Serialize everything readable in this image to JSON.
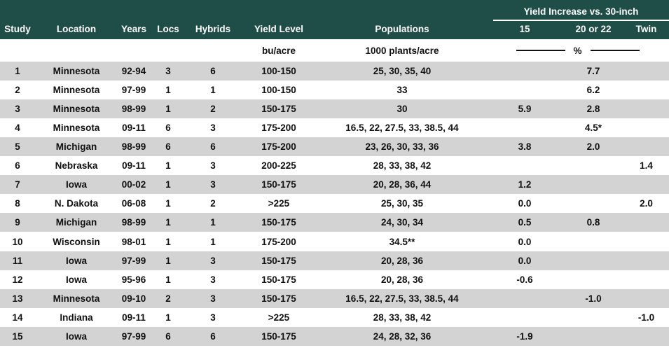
{
  "colors": {
    "header_bg": "#1F4E48",
    "stripe": "#D3D3D3",
    "row_white": "#FFFFFF",
    "header_text": "#FFFFFF",
    "body_text": "#111111"
  },
  "chart_data": {
    "type": "table",
    "group_header": "Yield Increase vs. 30-inch",
    "columns": [
      "Study",
      "Location",
      "Years",
      "Locs",
      "Hybrids",
      "Yield Level",
      "Populations",
      "15",
      "20 or 22",
      "Twin"
    ],
    "units": {
      "yield_level": "bu/acre",
      "populations": "1000 plants/acre",
      "yield_increase": "%"
    },
    "rows": [
      [
        "1",
        "Minnesota",
        "92-94",
        "3",
        "6",
        "100-150",
        "25, 30, 35, 40",
        "",
        "7.7",
        ""
      ],
      [
        "2",
        "Minnesota",
        "97-99",
        "1",
        "1",
        "100-150",
        "33",
        "",
        "6.2",
        ""
      ],
      [
        "3",
        "Minnesota",
        "98-99",
        "1",
        "2",
        "150-175",
        "30",
        "5.9",
        "2.8",
        ""
      ],
      [
        "4",
        "Minnesota",
        "09-11",
        "6",
        "3",
        "175-200",
        "16.5, 22, 27.5, 33, 38.5, 44",
        "",
        "4.5*",
        ""
      ],
      [
        "5",
        "Michigan",
        "98-99",
        "6",
        "6",
        "175-200",
        "23, 26, 30, 33, 36",
        "3.8",
        "2.0",
        ""
      ],
      [
        "6",
        "Nebraska",
        "09-11",
        "1",
        "3",
        "200-225",
        "28, 33, 38, 42",
        "",
        "",
        "1.4"
      ],
      [
        "7",
        "Iowa",
        "00-02",
        "1",
        "3",
        "150-175",
        "20, 28, 36, 44",
        "1.2",
        "",
        ""
      ],
      [
        "8",
        "N. Dakota",
        "06-08",
        "1",
        "2",
        ">225",
        "25, 30, 35",
        "0.0",
        "",
        "2.0"
      ],
      [
        "9",
        "Michigan",
        "98-99",
        "1",
        "1",
        "150-175",
        "24, 30, 34",
        "0.5",
        "0.8",
        ""
      ],
      [
        "10",
        "Wisconsin",
        "98-01",
        "1",
        "1",
        "175-200",
        "34.5**",
        "0.0",
        "",
        ""
      ],
      [
        "11",
        "Iowa",
        "97-99",
        "1",
        "3",
        "150-175",
        "20, 28, 36",
        "0.0",
        "",
        ""
      ],
      [
        "12",
        "Iowa",
        "95-96",
        "1",
        "3",
        "150-175",
        "20, 28, 36",
        "-0.6",
        "",
        ""
      ],
      [
        "13",
        "Minnesota",
        "09-10",
        "2",
        "3",
        "150-175",
        "16.5, 22, 27.5, 33, 38.5, 44",
        "",
        "-1.0",
        ""
      ],
      [
        "14",
        "Indiana",
        "09-11",
        "1",
        "3",
        ">225",
        "28, 33, 38, 42",
        "",
        "",
        "-1.0"
      ],
      [
        "15",
        "Iowa",
        "97-99",
        "6",
        "6",
        "150-175",
        "24, 28, 32, 36",
        "-1.9",
        "",
        ""
      ]
    ]
  }
}
